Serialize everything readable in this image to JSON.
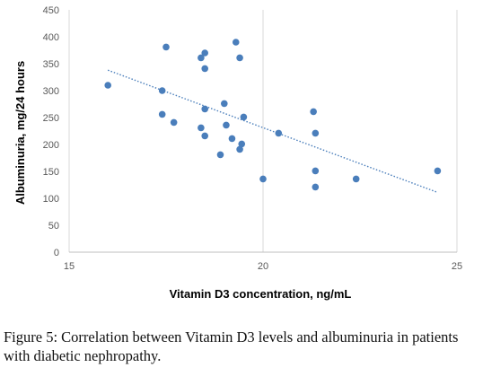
{
  "chart_data": {
    "type": "scatter",
    "xlabel": "Vitamin D3 concentration, ng/mL",
    "ylabel": "Albuminuria, mg/24 hours",
    "xlim": [
      15,
      25
    ],
    "ylim": [
      0,
      450
    ],
    "x_ticks": [
      15,
      20,
      25
    ],
    "y_ticks": [
      0,
      50,
      100,
      150,
      200,
      250,
      300,
      350,
      400,
      450
    ],
    "grid": "vertical gridlines only",
    "legend": "none",
    "point_color": "#4a7ebb",
    "trendline": {
      "style": "dotted linear",
      "color": "#4a7ebb",
      "x": [
        16,
        24.5
      ],
      "y": [
        338,
        111
      ]
    },
    "points": [
      {
        "x": 16.0,
        "y": 310
      },
      {
        "x": 17.4,
        "y": 300
      },
      {
        "x": 17.4,
        "y": 256
      },
      {
        "x": 17.5,
        "y": 381
      },
      {
        "x": 17.7,
        "y": 241
      },
      {
        "x": 18.4,
        "y": 361
      },
      {
        "x": 18.4,
        "y": 231
      },
      {
        "x": 18.5,
        "y": 370
      },
      {
        "x": 18.5,
        "y": 341
      },
      {
        "x": 18.5,
        "y": 266
      },
      {
        "x": 18.5,
        "y": 216
      },
      {
        "x": 18.9,
        "y": 181
      },
      {
        "x": 19.0,
        "y": 276
      },
      {
        "x": 19.05,
        "y": 236
      },
      {
        "x": 19.2,
        "y": 211
      },
      {
        "x": 19.3,
        "y": 390
      },
      {
        "x": 19.4,
        "y": 361
      },
      {
        "x": 19.4,
        "y": 191
      },
      {
        "x": 19.45,
        "y": 201
      },
      {
        "x": 19.5,
        "y": 251
      },
      {
        "x": 20.0,
        "y": 136
      },
      {
        "x": 20.4,
        "y": 221
      },
      {
        "x": 21.3,
        "y": 261
      },
      {
        "x": 21.35,
        "y": 221
      },
      {
        "x": 21.35,
        "y": 151
      },
      {
        "x": 21.35,
        "y": 121
      },
      {
        "x": 22.4,
        "y": 136
      },
      {
        "x": 24.5,
        "y": 151
      }
    ]
  },
  "caption": {
    "label": "Figure 5:",
    "text": "Correlation between Vitamin D3 levels and albuminuria in patients with diabetic nephropathy."
  }
}
